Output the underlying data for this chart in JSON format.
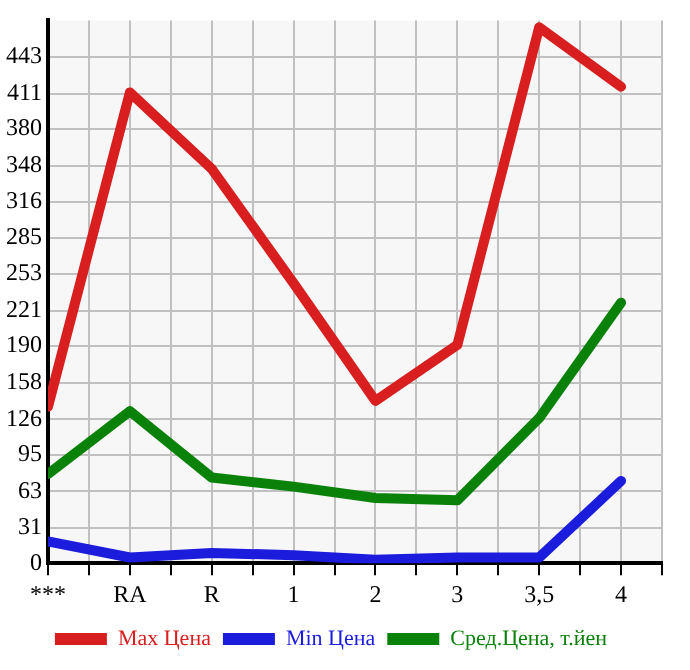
{
  "chart_data": {
    "type": "line",
    "categories": [
      "***",
      "RA",
      "R",
      "1",
      "2",
      "3",
      "3,5",
      "4"
    ],
    "series": [
      {
        "name": "Max Цена",
        "color": "#d81e1e",
        "values": [
          137,
          412,
          345,
          245,
          142,
          191,
          469,
          417
        ]
      },
      {
        "name": "Min Цена",
        "color": "#1c1cdc",
        "values": [
          19,
          5,
          9,
          7,
          3,
          5,
          5,
          72
        ]
      },
      {
        "name": "Сред.Цена, т.йен",
        "color": "#0a820a",
        "values": [
          78,
          133,
          75,
          67,
          57,
          55,
          127,
          228
        ]
      }
    ],
    "ylim": [
      0,
      475
    ],
    "yticks": [
      0,
      31,
      63,
      95,
      126,
      158,
      190,
      221,
      253,
      285,
      316,
      348,
      380,
      411,
      443
    ],
    "grid": true,
    "legend": "bottom",
    "marker": "none",
    "line_style": "solid"
  }
}
